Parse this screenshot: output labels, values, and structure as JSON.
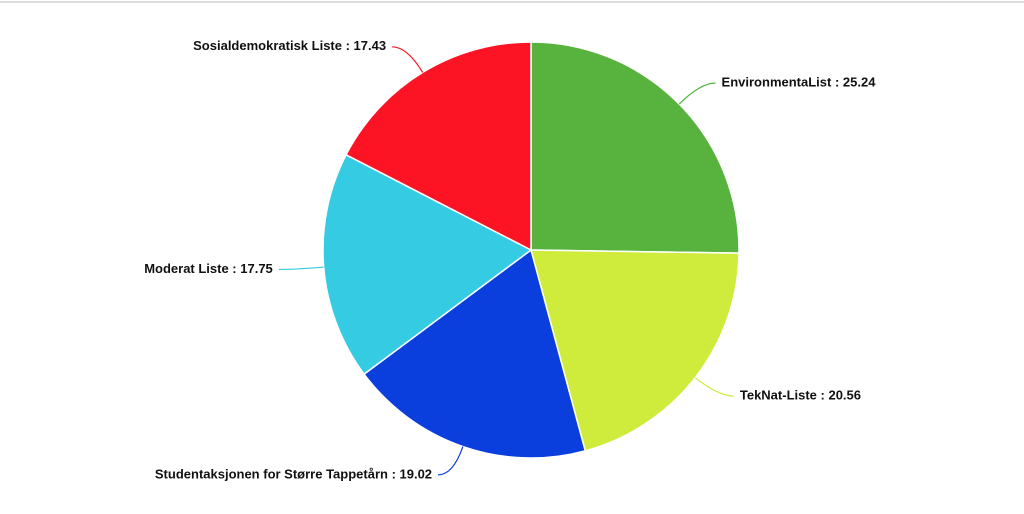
{
  "chart_data": {
    "type": "pie",
    "categories": [
      "EnvironmentaList : 25.24",
      "TekNat-Liste : 20.56",
      "Studentaksjonen for Større Tappetårn : 19.02",
      "Moderat Liste : 17.75",
      "Sosialdemokratisk Liste : 17.43"
    ],
    "values": [
      25.24,
      20.56,
      19.02,
      17.75,
      17.43
    ],
    "colors": [
      "#58b33e",
      "#cfeb3b",
      "#0b3fdd",
      "#35cbe3",
      "#fc1424"
    ]
  }
}
